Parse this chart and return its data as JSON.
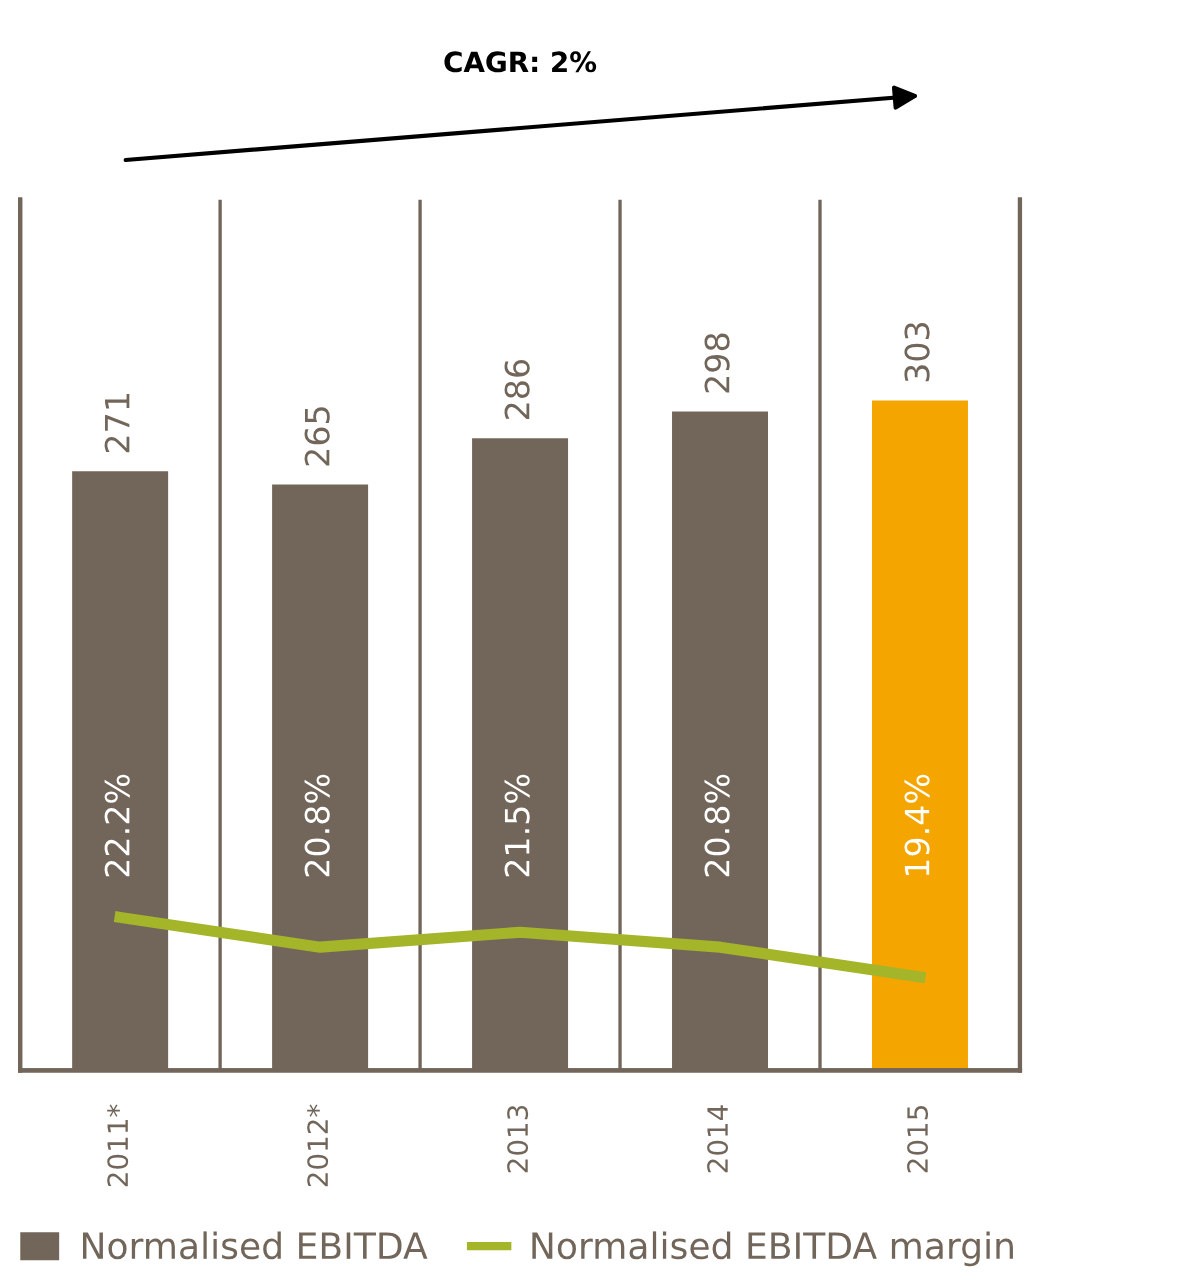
{
  "chart_data": {
    "type": "bar",
    "categories": [
      "2011*",
      "2012*",
      "2013",
      "2014",
      "2015"
    ],
    "series": [
      {
        "name": "Normalised EBITDA",
        "colors": [
          "#72665a",
          "#72665a",
          "#72665a",
          "#72665a",
          "#f5a500"
        ],
        "values": [
          271,
          265,
          286,
          298,
          303
        ],
        "value_labels": [
          "271",
          "265",
          "286",
          "298",
          "303"
        ]
      },
      {
        "name": "Normalised EBITDA margin",
        "type": "line",
        "axis": "y2",
        "color": "#a4b52a",
        "values": [
          22.2,
          20.8,
          21.5,
          20.8,
          19.4
        ],
        "value_labels": [
          "22.2%",
          "20.8%",
          "21.5%",
          "20.8%",
          "19.4%"
        ]
      }
    ],
    "y2lim": [
      15,
      56
    ],
    "tick_labels": "x",
    "grid": "x",
    "legend": "bottom",
    "marker": "none",
    "line_style": "solid",
    "annotations": [
      "CAGR: 2%"
    ]
  }
}
